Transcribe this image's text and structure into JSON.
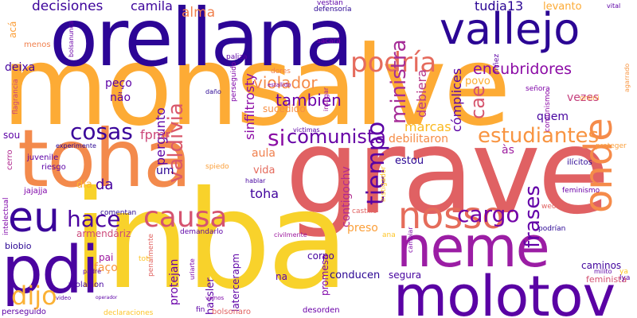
{
  "words": [
    {
      "text": "monsalve",
      "color": "#fdab35"
    },
    {
      "text": "grave",
      "color": "#e06163"
    },
    {
      "text": "inba",
      "color": "#f8d22b"
    },
    {
      "text": "orellana",
      "color": "#2c0596"
    },
    {
      "text": "tohá",
      "color": "#f38a4c"
    },
    {
      "text": "neme",
      "color": "#9b1da4"
    },
    {
      "text": "molotov",
      "color": "#5a02a4"
    },
    {
      "text": "pdi",
      "color": "#4a03a0"
    },
    {
      "text": "nosso",
      "color": "#e56c5b"
    },
    {
      "text": "vallejo",
      "color": "#2b0594"
    },
    {
      "text": "eu",
      "color": "#3a049a"
    },
    {
      "text": "onde",
      "color": "#f58b4a"
    },
    {
      "text": "causa",
      "color": "#d5536f"
    },
    {
      "text": "hace",
      "color": "#4a03a0"
    },
    {
      "text": "podría",
      "color": "#e56b5d"
    },
    {
      "text": "tiempo",
      "color": "#5902a4"
    },
    {
      "text": "cosas",
      "color": "#3a049a"
    },
    {
      "text": "dijo",
      "color": "#fbb135"
    },
    {
      "text": "estudiantes",
      "color": "#f89441"
    },
    {
      "text": "comunista",
      "color": "#6601a6"
    },
    {
      "text": "cargo",
      "color": "#7201a8"
    },
    {
      "text": "valdivia",
      "color": "#d9586b"
    },
    {
      "text": "si",
      "color": "#8a0da4"
    },
    {
      "text": "frases",
      "color": "#6200a8"
    },
    {
      "text": "encubridores",
      "color": "#8b0aa5"
    },
    {
      "text": "ministra",
      "color": "#a52c97"
    },
    {
      "text": "cae",
      "color": "#d6556d"
    },
    {
      "text": "violador",
      "color": "#f58b4a"
    },
    {
      "text": "decisiones",
      "color": "#3d049b"
    },
    {
      "text": "camila",
      "color": "#3d049b"
    },
    {
      "text": "alma",
      "color": "#f0804e"
    },
    {
      "text": "tudia13",
      "color": "#2a0593"
    },
    {
      "text": "levanto",
      "color": "#fcaa35"
    },
    {
      "text": "tambien",
      "color": "#6a00a8"
    },
    {
      "text": "pergunto",
      "color": "#5c01a6"
    },
    {
      "text": "sinfiltrosty",
      "color": "#8b0aa5"
    },
    {
      "text": "debiera",
      "color": "#b7398a"
    },
    {
      "text": "cómplices",
      "color": "#5a02a4"
    },
    {
      "text": "deixa",
      "color": "#46039f"
    },
    {
      "text": "peço",
      "color": "#5c01a6"
    },
    {
      "text": "não",
      "color": "#5c01a6"
    },
    {
      "text": "fpmr",
      "color": "#cc4778"
    },
    {
      "text": "sucedido",
      "color": "#f68f44"
    },
    {
      "text": "contigochv",
      "color": "#b12a90"
    },
    {
      "text": "debilitaron",
      "color": "#f58c46"
    },
    {
      "text": "marcas",
      "color": "#fbb91f"
    },
    {
      "text": "quem",
      "color": "#46039f"
    },
    {
      "text": "vezes",
      "color": "#c5407e"
    },
    {
      "text": "povo",
      "color": "#fdad32"
    },
    {
      "text": "às",
      "color": "#9e1fa0"
    },
    {
      "text": "aula",
      "color": "#f0804e"
    },
    {
      "text": "um",
      "color": "#2a0593"
    },
    {
      "text": "vida",
      "color": "#e56b5d"
    },
    {
      "text": "toha",
      "color": "#41049d"
    },
    {
      "text": "estou",
      "color": "#2a0593"
    },
    {
      "text": "da",
      "color": "#46039f"
    },
    {
      "text": "dia",
      "color": "#fdb32f"
    },
    {
      "text": "sou",
      "color": "#5c01a6"
    },
    {
      "text": "armendáriz",
      "color": "#cc4778"
    },
    {
      "text": "hassler",
      "color": "#5c01a6"
    },
    {
      "text": "preso",
      "color": "#fb9f3a"
    },
    {
      "text": "corpo",
      "color": "#46039f"
    },
    {
      "text": "faço",
      "color": "#f89540"
    },
    {
      "text": "pai",
      "color": "#9c179e"
    },
    {
      "text": "na",
      "color": "#5c01a6"
    },
    {
      "text": "protejan",
      "color": "#6a00a8"
    },
    {
      "text": "latercerapm",
      "color": "#5c01a6"
    },
    {
      "text": "promesa",
      "color": "#7e03a8"
    },
    {
      "text": "conducen",
      "color": "#2a0593"
    },
    {
      "text": "segura",
      "color": "#46039f"
    },
    {
      "text": "caminos",
      "color": "#41049d"
    },
    {
      "text": "feminista",
      "color": "#d35171"
    },
    {
      "text": "biobio",
      "color": "#2a0593"
    },
    {
      "text": "jajajja",
      "color": "#7e03a8"
    },
    {
      "text": "riesgo",
      "color": "#5c01a6"
    },
    {
      "text": "juvenile",
      "color": "#5c01a6"
    },
    {
      "text": "cerro",
      "color": "#b12a90"
    },
    {
      "text": "menos",
      "color": "#f0804e"
    },
    {
      "text": "acá",
      "color": "#fb9f3a"
    },
    {
      "text": "paliza",
      "color": "#5c01a6"
    },
    {
      "text": "dores",
      "color": "#f0804e"
    },
    {
      "text": "perseguido",
      "color": "#7e03a8"
    },
    {
      "text": "fin",
      "color": "#5c01a6"
    },
    {
      "text": "desorden",
      "color": "#6a00a8"
    },
    {
      "text": "bolsonaro",
      "color": "#e16462"
    },
    {
      "text": "declaraciones",
      "color": "#fdc527"
    },
    {
      "text": "perseguido",
      "color": "#5c01a6"
    },
    {
      "text": "violacion",
      "color": "#46039f"
    },
    {
      "text": "comentan",
      "color": "#2a0593"
    },
    {
      "text": "demandarlo",
      "color": "#5c01a6"
    },
    {
      "text": "castillo",
      "color": "#e16462"
    },
    {
      "text": "podrían",
      "color": "#2a0593"
    },
    {
      "text": "weones",
      "color": "#e16462"
    },
    {
      "text": "feminismo",
      "color": "#6a00a8"
    },
    {
      "text": "ilícitos",
      "color": "#2a0593"
    },
    {
      "text": "proteger",
      "color": "#fb9f3a"
    },
    {
      "text": "señora",
      "color": "#7e03a8"
    },
    {
      "text": "ñiñez",
      "color": "#5c01a6"
    },
    {
      "text": "orsini",
      "color": "#fb9f3a"
    },
    {
      "text": "comunismo",
      "color": "#8b0aa5"
    },
    {
      "text": "sacará",
      "color": "#7e03a8"
    },
    {
      "text": "defensoría",
      "color": "#2a0593"
    },
    {
      "text": "vestían",
      "color": "#5c01a6"
    },
    {
      "text": "penalmente",
      "color": "#e16462"
    },
    {
      "text": "spiedo",
      "color": "#fb9f3a"
    },
    {
      "text": "instigador",
      "color": "#fdc527"
    },
    {
      "text": "flagrancia",
      "color": "#cc4778"
    },
    {
      "text": "intelectual",
      "color": "#7e03a8"
    },
    {
      "text": "experimente",
      "color": "#2a0593"
    },
    {
      "text": "civilmente",
      "color": "#9c179e"
    },
    {
      "text": "hablar",
      "color": "#46039f"
    },
    {
      "text": "uriarte",
      "color": "#7e03a8"
    },
    {
      "text": "ana",
      "color": "#fdc527"
    },
    {
      "text": "toti",
      "color": "#fdc527"
    },
    {
      "text": "padre",
      "color": "#5c01a6"
    },
    {
      "text": "agarrado",
      "color": "#f89540"
    },
    {
      "text": "bolsanunca",
      "color": "#6a00a8"
    },
    {
      "text": "vital",
      "color": "#5c01a6"
    },
    {
      "text": "milito",
      "color": "#5c01a6"
    },
    {
      "text": "daño",
      "color": "#2a0593"
    },
    {
      "text": "estallido",
      "color": "#7e03a8"
    },
    {
      "text": "instigar",
      "color": "#9c179e"
    },
    {
      "text": "victimas",
      "color": "#5c01a6"
    },
    {
      "text": "cambiar",
      "color": "#7e03a8"
    },
    {
      "text": "vamos",
      "color": "#7e03a8"
    },
    {
      "text": "video",
      "color": "#5c01a6"
    },
    {
      "text": "operador",
      "color": "#5c01a6"
    },
    {
      "text": "ya",
      "color": "#fdc527"
    },
    {
      "text": "lya",
      "color": "#5c01a6"
    }
  ]
}
